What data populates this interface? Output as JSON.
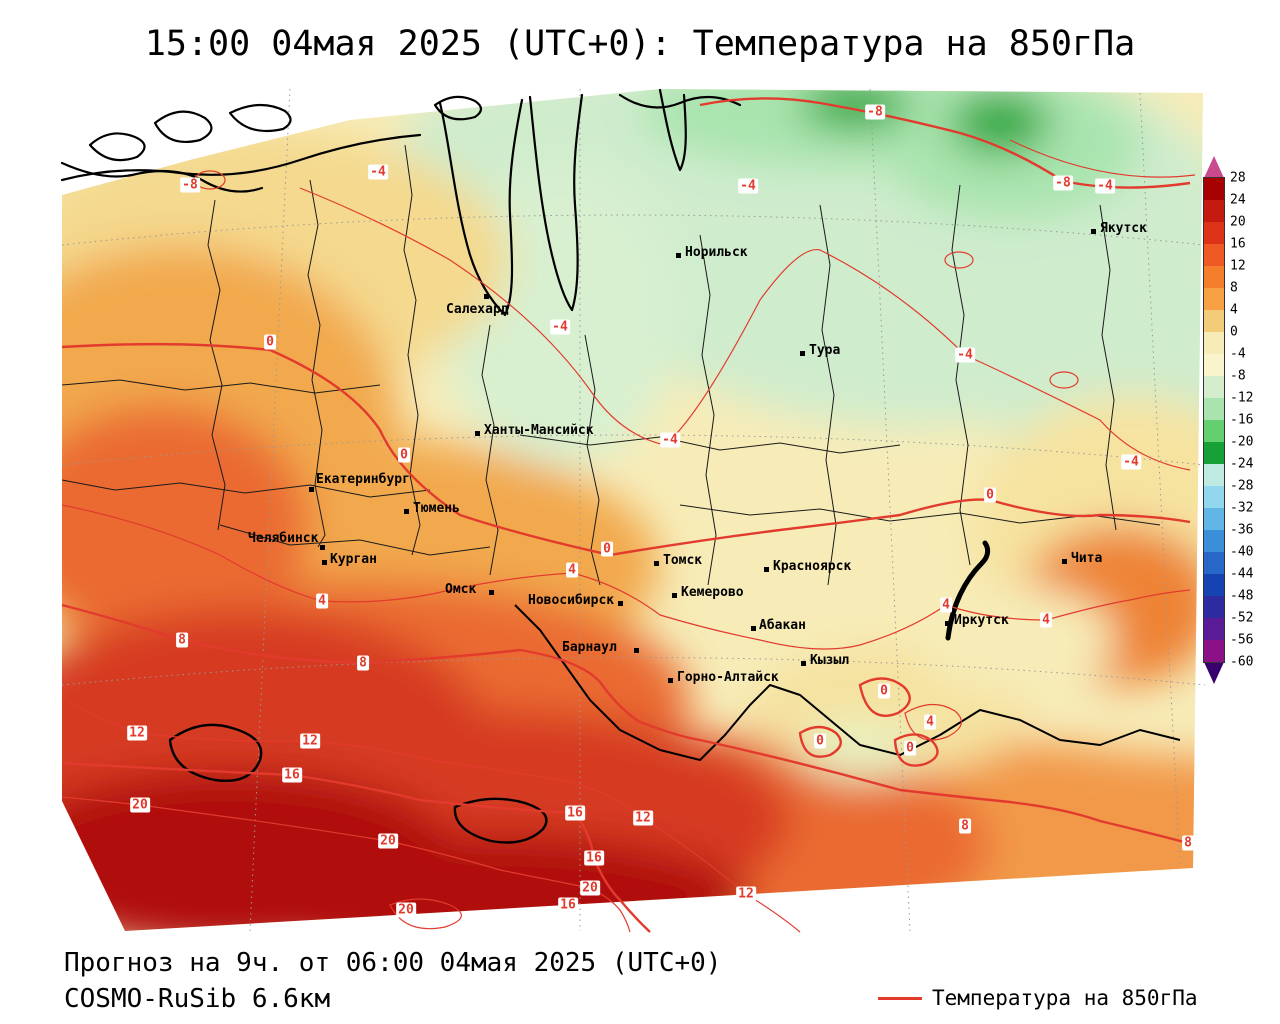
{
  "header": {
    "title": "15:00 04мая 2025 (UTC+0): Температура на 850гПа"
  },
  "footer": {
    "line1": "Прогноз на 9ч. от 06:00 04мая 2025 (UTC+0)",
    "line2": "COSMO-RuSib 6.6км"
  },
  "legend": {
    "label": "Температура на 850гПа"
  },
  "colorbar": {
    "labels": [
      "28",
      "24",
      "20",
      "16",
      "12",
      "8",
      "4",
      "0",
      "-4",
      "-8",
      "-12",
      "-16",
      "-20",
      "-24",
      "-28",
      "-32",
      "-36",
      "-40",
      "-44",
      "-48",
      "-52",
      "-56",
      "-60"
    ],
    "segment_colors": [
      "#a60000",
      "#c41a10",
      "#de3318",
      "#ef5a24",
      "#f57e2c",
      "#f7a044",
      "#f3cc7a",
      "#f7ecb8",
      "#faf4cc",
      "#d4eecd",
      "#a9e4ae",
      "#63cf6e",
      "#18a038",
      "#bfeae2",
      "#93d7ef",
      "#62b6e6",
      "#3b8ed8",
      "#2767c8",
      "#1643b2",
      "#2e2ba0",
      "#5a1b96",
      "#8c1086"
    ],
    "arrow_top_color": "#c84b8e",
    "arrow_bottom_color": "#38006e"
  },
  "map": {
    "contour_color": "#e23b2e",
    "contour_values": {
      "m8": "-8",
      "m4": "-4",
      "c0": "0",
      "p4": "4",
      "p8": "8",
      "p12": "12",
      "p16": "16",
      "p20": "20"
    },
    "cities": [
      "Норильск",
      "Салехард",
      "Тура",
      "Якутск",
      "Ханты-Мансийск",
      "Екатеринбург",
      "Тюмень",
      "Челябинск",
      "Курган",
      "Омск",
      "Томск",
      "Новосибирск",
      "Кемерово",
      "Красноярск",
      "Абакан",
      "Иркутск",
      "Чита",
      "Барнаул",
      "Горно-Алтайск",
      "Кызыл"
    ]
  }
}
